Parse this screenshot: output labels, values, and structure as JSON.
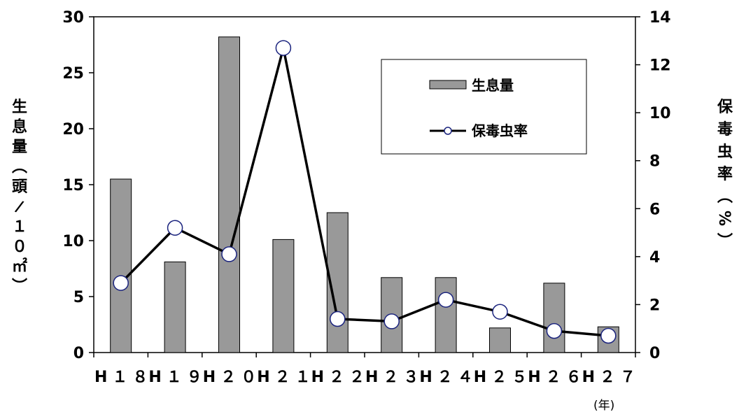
{
  "chart_data": {
    "type": "bar",
    "categories": [
      "H18",
      "H19",
      "H20",
      "H21",
      "H22",
      "H23",
      "H24",
      "H25",
      "H26",
      "H27"
    ],
    "category_labels": [
      "H１８",
      "H１９",
      "H２０",
      "H２１",
      "H２２",
      "H２３",
      "H２４",
      "H２５",
      "H２６",
      "H２７"
    ],
    "series": [
      {
        "name": "生息量",
        "type": "bar",
        "axis": "left",
        "values": [
          15.5,
          8.1,
          28.2,
          10.1,
          12.5,
          6.7,
          6.7,
          2.2,
          6.2,
          2.3
        ]
      },
      {
        "name": "保毒虫率",
        "type": "line",
        "axis": "right",
        "values": [
          2.9,
          5.2,
          4.1,
          12.7,
          1.4,
          1.3,
          2.2,
          1.7,
          0.9,
          0.7
        ]
      }
    ],
    "ylabel_left": "生息量(頭/１０㎡)",
    "ylabel_right": "保毒虫率(%)",
    "xunit": "(年)",
    "ylim_left": [
      0,
      30
    ],
    "ylim_right": [
      0,
      14
    ],
    "yticks_left": [
      "0",
      "5",
      "10",
      "15",
      "20",
      "25",
      "30"
    ],
    "yticks_right": [
      "0",
      "2",
      "4",
      "6",
      "8",
      "10",
      "12",
      "14"
    ],
    "legend_position": "top-right",
    "grid": false,
    "colors": {
      "bar": "#999999",
      "line": "#000000",
      "marker_fill": "#ffffff"
    }
  }
}
